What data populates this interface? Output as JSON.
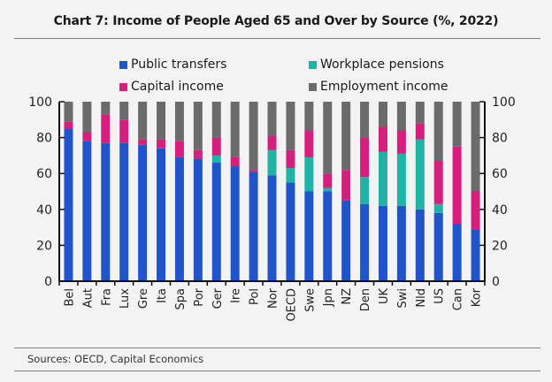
{
  "chart_data": {
    "type": "bar",
    "stacked": true,
    "title": "Chart 7: Income of People Aged 65 and Over by Source (%, 2022)",
    "xlabel": "",
    "ylabel": "",
    "ylim": [
      0,
      100
    ],
    "yticks": [
      0,
      20,
      40,
      60,
      80,
      100
    ],
    "grid": false,
    "legend_position": "top",
    "categories": [
      "Bel",
      "Aut",
      "Fra",
      "Lux",
      "Gre",
      "Ita",
      "Spa",
      "Por",
      "Ger",
      "Ire",
      "Pol",
      "Nor",
      "OECD",
      "Swe",
      "Jpn",
      "NZ",
      "Den",
      "UK",
      "Swi",
      "Nld",
      "US",
      "Can",
      "Kor"
    ],
    "series": [
      {
        "name": "Public transfers",
        "color": "#1f55c8",
        "values": [
          85,
          78,
          77,
          77,
          76,
          74,
          69,
          68,
          66,
          64,
          61,
          59,
          55,
          50,
          50,
          45,
          43,
          42,
          42,
          40,
          38,
          32,
          29
        ]
      },
      {
        "name": "Workplace pensions",
        "color": "#1fb3a6",
        "values": [
          0,
          0,
          0,
          0,
          0,
          0,
          0,
          0,
          4,
          0,
          0,
          14,
          8,
          19,
          2,
          0,
          15,
          30,
          29,
          39,
          5,
          0,
          0
        ]
      },
      {
        "name": "Capital income",
        "color": "#d61f7c",
        "values": [
          4,
          5,
          16,
          13,
          3,
          5,
          9,
          5,
          10,
          5,
          1,
          8,
          10,
          15,
          8,
          17,
          22,
          14,
          13,
          9,
          24,
          43,
          21
        ]
      },
      {
        "name": "Employment income",
        "color": "#6b6b6b",
        "values": [
          11,
          17,
          7,
          10,
          21,
          21,
          22,
          27,
          20,
          31,
          38,
          19,
          27,
          16,
          40,
          38,
          20,
          14,
          16,
          12,
          33,
          25,
          50
        ]
      }
    ]
  },
  "footer": {
    "source": "Sources:  OECD, Capital Economics"
  }
}
